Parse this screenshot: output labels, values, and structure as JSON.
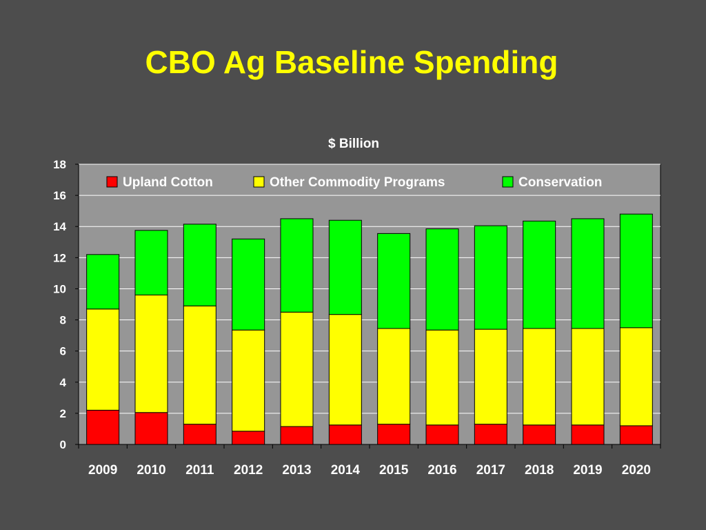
{
  "slide": {
    "title": "CBO Ag Baseline Spending"
  },
  "chart_data": {
    "type": "bar",
    "stacked": true,
    "title": "$ Billion",
    "xlabel": "",
    "ylabel": "",
    "categories": [
      "2009",
      "2010",
      "2011",
      "2012",
      "2013",
      "2014",
      "2015",
      "2016",
      "2017",
      "2018",
      "2019",
      "2020"
    ],
    "series": [
      {
        "name": "Upland Cotton",
        "color": "#ff0000",
        "values": [
          2.2,
          2.05,
          1.3,
          0.85,
          1.15,
          1.25,
          1.3,
          1.25,
          1.3,
          1.25,
          1.25,
          1.2
        ]
      },
      {
        "name": "Other Commodity Programs",
        "color": "#ffff00",
        "values": [
          6.5,
          7.55,
          7.6,
          6.5,
          7.35,
          7.1,
          6.15,
          6.1,
          6.1,
          6.2,
          6.2,
          6.3
        ]
      },
      {
        "name": "Conservation",
        "color": "#00ff00",
        "values": [
          3.5,
          4.15,
          5.25,
          5.85,
          6.0,
          6.05,
          6.1,
          6.5,
          6.65,
          6.9,
          7.05,
          7.3
        ]
      }
    ],
    "ylim": [
      0,
      18
    ],
    "yticks": [
      "0",
      "2",
      "4",
      "6",
      "8",
      "10",
      "12",
      "14",
      "16",
      "18"
    ],
    "grid": true,
    "legend_position": "top",
    "plot_background": "#969696"
  }
}
